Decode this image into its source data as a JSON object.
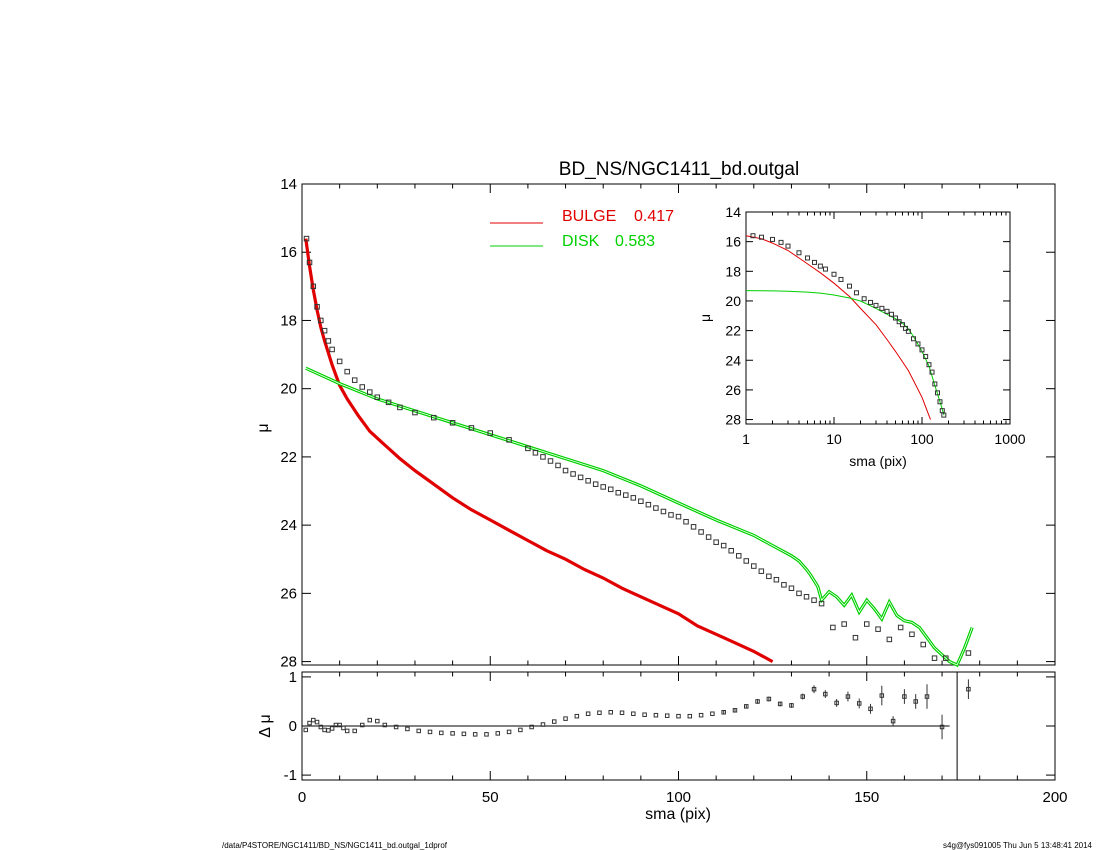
{
  "chart_data": [
    {
      "id": "main",
      "type": "line",
      "title": "BD_NS/NGC1411_bd.outgal",
      "xlabel": "",
      "ylabel": "μ",
      "xlim": [
        0,
        200
      ],
      "ylim": [
        28.1,
        14
      ],
      "y_reversed": true,
      "x_ticks": [
        0,
        50,
        100,
        150,
        200
      ],
      "y_ticks": [
        14,
        16,
        18,
        20,
        22,
        24,
        26,
        28
      ],
      "legend": {
        "placement": "top-center",
        "entries": [
          {
            "label": "BULGE",
            "value": "0.417",
            "color": "#e00000"
          },
          {
            "label": "DISK",
            "value": "0.583",
            "color": "#00d000"
          }
        ]
      },
      "series": [
        {
          "name": "data",
          "style": "open-square-markers",
          "color": "#333333",
          "x": [
            1.2,
            2,
            3,
            4,
            5,
            6,
            7,
            8,
            10,
            12,
            14,
            16,
            18,
            20,
            23,
            26,
            30,
            35,
            40,
            45,
            50,
            55,
            60,
            62,
            64,
            66,
            68,
            70,
            72,
            74,
            76,
            78,
            80,
            82,
            84,
            86,
            88,
            90,
            92,
            94,
            96,
            98,
            100,
            102,
            104,
            106,
            108,
            110,
            112,
            114,
            116,
            118,
            120,
            122,
            124,
            126,
            128,
            130,
            132,
            134,
            136,
            138,
            141,
            144,
            147,
            150,
            153,
            156,
            159,
            162,
            165,
            168,
            171,
            177
          ],
          "y": [
            15.6,
            16.3,
            17.0,
            17.6,
            18.0,
            18.3,
            18.6,
            18.85,
            19.2,
            19.5,
            19.75,
            19.95,
            20.1,
            20.25,
            20.4,
            20.55,
            20.7,
            20.85,
            21.0,
            21.15,
            21.3,
            21.5,
            21.75,
            21.88,
            22.0,
            22.12,
            22.25,
            22.4,
            22.5,
            22.6,
            22.7,
            22.8,
            22.88,
            22.95,
            23.05,
            23.12,
            23.2,
            23.3,
            23.4,
            23.5,
            23.6,
            23.7,
            23.75,
            23.9,
            24.05,
            24.2,
            24.35,
            24.5,
            24.6,
            24.75,
            24.9,
            25.05,
            25.2,
            25.35,
            25.5,
            25.6,
            25.75,
            25.85,
            26.0,
            26.1,
            26.2,
            26.3,
            27.0,
            26.9,
            27.3,
            26.9,
            27.05,
            27.35,
            27.0,
            27.2,
            27.5,
            27.9,
            27.9,
            27.75
          ]
        },
        {
          "name": "BULGE",
          "style": "line",
          "color": "#e00000",
          "x": [
            1,
            2,
            3,
            4,
            5,
            6,
            8,
            10,
            12,
            15,
            18,
            22,
            26,
            30,
            35,
            40,
            45,
            50,
            55,
            60,
            65,
            70,
            75,
            80,
            85,
            90,
            95,
            100,
            105,
            110,
            115,
            120,
            125
          ],
          "y": [
            15.6,
            16.4,
            17.1,
            17.7,
            18.2,
            18.6,
            19.3,
            19.9,
            20.3,
            20.8,
            21.25,
            21.65,
            22.05,
            22.4,
            22.8,
            23.2,
            23.55,
            23.85,
            24.15,
            24.45,
            24.75,
            25.0,
            25.3,
            25.55,
            25.85,
            26.1,
            26.35,
            26.6,
            26.95,
            27.2,
            27.45,
            27.7,
            28.0
          ]
        },
        {
          "name": "DISK",
          "style": "line",
          "color": "#00d000",
          "x": [
            1,
            10,
            20,
            30,
            40,
            50,
            60,
            70,
            80,
            90,
            100,
            105,
            110,
            120,
            125,
            130,
            132,
            134,
            135,
            137,
            138,
            140,
            142,
            144,
            146,
            148,
            150,
            152,
            154,
            156,
            158,
            160,
            162,
            164,
            166,
            168,
            170,
            172,
            174,
            176,
            178
          ],
          "y": [
            19.4,
            19.85,
            20.3,
            20.65,
            21.0,
            21.35,
            21.7,
            22.05,
            22.4,
            22.85,
            23.35,
            23.6,
            23.85,
            24.3,
            24.6,
            24.9,
            25.05,
            25.3,
            25.45,
            25.8,
            26.2,
            25.95,
            26.1,
            26.35,
            26.05,
            26.55,
            26.2,
            26.45,
            26.75,
            26.25,
            26.65,
            26.8,
            26.85,
            27.0,
            27.3,
            27.6,
            27.8,
            28.0,
            28.1,
            27.6,
            27.0
          ]
        }
      ]
    },
    {
      "id": "residual",
      "type": "scatter",
      "xlabel": "sma (pix)",
      "ylabel": "Δ μ",
      "xlim": [
        0,
        200
      ],
      "ylim": [
        -1.1,
        1.1
      ],
      "x_ticks": [
        0,
        50,
        100,
        150,
        200
      ],
      "y_ticks": [
        -1,
        0,
        1
      ],
      "zero_line": 0,
      "vertical_line_x": 174,
      "series": [
        {
          "name": "residual",
          "style": "open-square-markers",
          "color": "#333333",
          "x": [
            1,
            2,
            3,
            4,
            5,
            6,
            7,
            8,
            9,
            10,
            11,
            12,
            14,
            16,
            18,
            20,
            22,
            25,
            28,
            31,
            34,
            37,
            40,
            43,
            46,
            49,
            52,
            55,
            58,
            61,
            64,
            67,
            70,
            73,
            76,
            79,
            82,
            85,
            88,
            91,
            94,
            97,
            100,
            103,
            106,
            109,
            112,
            115,
            118,
            121,
            124,
            127,
            130,
            133,
            136,
            139,
            142,
            145,
            148,
            151,
            154,
            157,
            160,
            163,
            166,
            170,
            177
          ],
          "y": [
            -0.08,
            0.06,
            0.12,
            0.08,
            -0.02,
            -0.08,
            -0.09,
            -0.05,
            0.02,
            0.02,
            -0.04,
            -0.1,
            -0.1,
            0.02,
            0.12,
            0.1,
            0.02,
            -0.02,
            -0.06,
            -0.1,
            -0.12,
            -0.14,
            -0.15,
            -0.16,
            -0.17,
            -0.17,
            -0.15,
            -0.12,
            -0.08,
            -0.02,
            0.03,
            0.09,
            0.15,
            0.2,
            0.25,
            0.27,
            0.28,
            0.27,
            0.25,
            0.23,
            0.22,
            0.21,
            0.2,
            0.2,
            0.22,
            0.25,
            0.28,
            0.32,
            0.4,
            0.5,
            0.55,
            0.45,
            0.42,
            0.6,
            0.75,
            0.65,
            0.47,
            0.6,
            0.46,
            0.35,
            0.62,
            0.1,
            0.6,
            0.5,
            0.6,
            -0.02,
            0.75
          ],
          "error": [
            0.01,
            0.01,
            0.01,
            0.01,
            0.01,
            0.01,
            0.01,
            0.01,
            0.01,
            0.01,
            0.01,
            0.01,
            0.01,
            0.01,
            0.01,
            0.01,
            0.01,
            0.01,
            0.01,
            0.01,
            0.01,
            0.01,
            0.01,
            0.01,
            0.01,
            0.01,
            0.01,
            0.01,
            0.01,
            0.01,
            0.01,
            0.01,
            0.01,
            0.01,
            0.01,
            0.01,
            0.01,
            0.01,
            0.01,
            0.01,
            0.01,
            0.01,
            0.01,
            0.02,
            0.02,
            0.02,
            0.03,
            0.03,
            0.04,
            0.05,
            0.05,
            0.05,
            0.05,
            0.06,
            0.08,
            0.08,
            0.08,
            0.1,
            0.1,
            0.1,
            0.2,
            0.1,
            0.15,
            0.15,
            0.25,
            0.25,
            0.2
          ]
        }
      ]
    },
    {
      "id": "inset",
      "type": "line",
      "xlabel": "sma (pix)",
      "ylabel": "μ",
      "x_scale": "log",
      "xlim": [
        1,
        1000
      ],
      "ylim": [
        28.3,
        14
      ],
      "y_reversed": true,
      "x_ticks": [
        1,
        10,
        100,
        1000
      ],
      "y_ticks": [
        14,
        16,
        18,
        20,
        22,
        24,
        26,
        28
      ],
      "series": [
        {
          "name": "data",
          "style": "open-square-markers",
          "color": "#333333",
          "x": [
            1.2,
            1.5,
            2,
            2.5,
            3,
            4,
            5,
            6,
            7,
            8,
            10,
            12,
            15,
            18,
            22,
            26,
            30,
            35,
            40,
            45,
            50,
            55,
            60,
            65,
            70,
            80,
            90,
            100,
            110,
            120,
            130,
            140,
            150,
            160,
            170,
            177
          ],
          "y": [
            15.6,
            15.7,
            15.85,
            16.05,
            16.3,
            16.75,
            17.1,
            17.4,
            17.65,
            17.85,
            18.2,
            18.55,
            19.0,
            19.45,
            19.85,
            20.1,
            20.3,
            20.5,
            20.7,
            20.9,
            21.15,
            21.4,
            21.6,
            21.85,
            22.05,
            22.55,
            22.9,
            23.3,
            23.75,
            24.3,
            24.8,
            25.6,
            26.2,
            26.8,
            27.4,
            27.7
          ]
        },
        {
          "name": "BULGE",
          "style": "line",
          "color": "#e00000",
          "x": [
            1,
            1.5,
            2,
            3,
            4,
            5,
            7,
            10,
            15,
            20,
            30,
            40,
            50,
            70,
            100,
            125
          ],
          "y": [
            15.6,
            15.8,
            16.1,
            16.6,
            17.1,
            17.5,
            18.1,
            18.8,
            19.7,
            20.5,
            21.6,
            22.6,
            23.4,
            24.7,
            26.5,
            28.0
          ]
        },
        {
          "name": "DISK",
          "style": "line",
          "color": "#00d000",
          "x": [
            1,
            2,
            3,
            5,
            7,
            10,
            15,
            20,
            30,
            40,
            50,
            60,
            70,
            80,
            100,
            120,
            140,
            160,
            178
          ],
          "y": [
            19.3,
            19.32,
            19.35,
            19.4,
            19.47,
            19.6,
            19.8,
            20.0,
            20.5,
            20.9,
            21.2,
            21.5,
            21.9,
            22.4,
            23.4,
            24.4,
            25.7,
            26.8,
            27.7
          ]
        }
      ]
    }
  ],
  "footer": {
    "left": "/data/P4STORE/NGC1411/BD_NS/NGC1411_bd.outgal_1dprof",
    "right": "s4g@fys091005  Thu Jun  5 13:48:41 2014"
  }
}
